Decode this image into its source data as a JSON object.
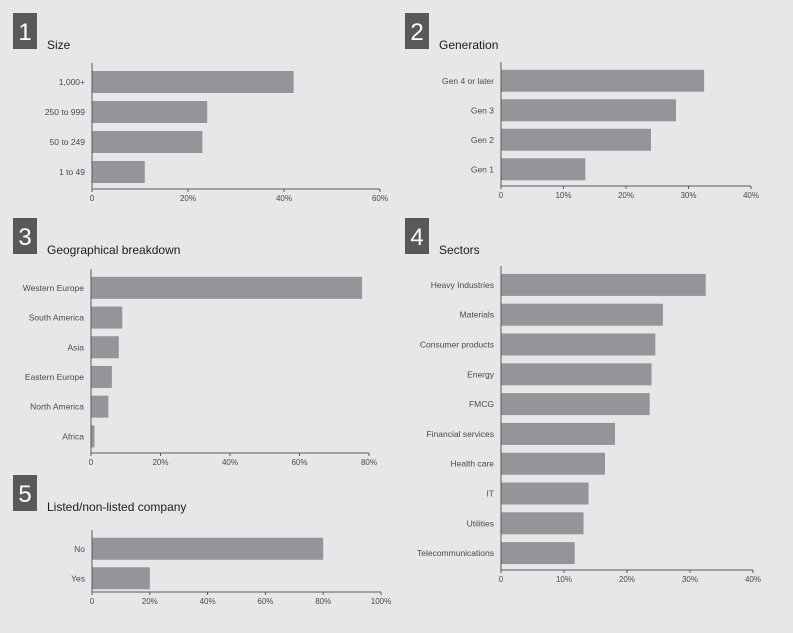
{
  "colors": {
    "background": "#e6e7e8",
    "badge": "#58595b",
    "bar": "#939598",
    "axis": "#58595b",
    "text": "#1a1a1a"
  },
  "chart_data": [
    {
      "type": "bar",
      "orientation": "horizontal",
      "number": "1",
      "title": "Size",
      "categories": [
        "1,000+",
        "250 to 999",
        "50 to 249",
        "1 to 49"
      ],
      "values": [
        42,
        24,
        23,
        11
      ],
      "xlim": [
        0,
        60
      ],
      "ticks": [
        "0",
        "20%",
        "40%",
        "60%"
      ],
      "tick_values": [
        0,
        20,
        40,
        60
      ]
    },
    {
      "type": "bar",
      "orientation": "horizontal",
      "number": "2",
      "title": "Generation",
      "categories": [
        "Gen 4 or later",
        "Gen 3",
        "Gen 2",
        "Gen 1"
      ],
      "values": [
        32.5,
        28,
        24,
        13.5
      ],
      "xlim": [
        0,
        40
      ],
      "ticks": [
        "0",
        "10%",
        "20%",
        "30%",
        "40%"
      ],
      "tick_values": [
        0,
        10,
        20,
        30,
        40
      ]
    },
    {
      "type": "bar",
      "orientation": "horizontal",
      "number": "3",
      "title": "Geographical breakdown",
      "categories": [
        "Western Europe",
        "South America",
        "Asia",
        "Eastern Europe",
        "North America",
        "Africa"
      ],
      "values": [
        78,
        9,
        8,
        6,
        5,
        1
      ],
      "xlim": [
        0,
        80
      ],
      "ticks": [
        "0",
        "20%",
        "40%",
        "60%",
        "80%"
      ],
      "tick_values": [
        0,
        20,
        40,
        60,
        80
      ]
    },
    {
      "type": "bar",
      "orientation": "horizontal",
      "number": "4",
      "title": "Sectors",
      "categories": [
        "Heavy Industries",
        "Materials",
        "Consumer products",
        "Energy",
        "FMCG",
        "Financial services",
        "Health care",
        "IT",
        "Utilities",
        "Telecommunications"
      ],
      "values": [
        32.5,
        25.7,
        24.5,
        23.9,
        23.6,
        18.1,
        16.5,
        13.9,
        13.1,
        11.7
      ],
      "xlim": [
        0,
        40
      ],
      "ticks": [
        "0",
        "10%",
        "20%",
        "30%",
        "40%"
      ],
      "tick_values": [
        0,
        10,
        20,
        30,
        40
      ]
    },
    {
      "type": "bar",
      "orientation": "horizontal",
      "number": "5",
      "title": "Listed/non-listed company",
      "categories": [
        "No",
        "Yes"
      ],
      "values": [
        80,
        20
      ],
      "xlim": [
        0,
        100
      ],
      "ticks": [
        "0",
        "20%",
        "40%",
        "60%",
        "80%",
        "100%"
      ],
      "tick_values": [
        0,
        20,
        40,
        60,
        80,
        100
      ]
    }
  ]
}
